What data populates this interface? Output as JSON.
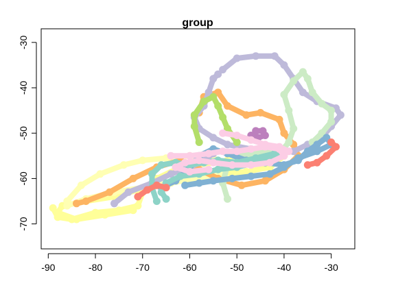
{
  "chart_data": {
    "type": "scatter",
    "title": "group",
    "xlabel": "",
    "ylabel": "",
    "xlim": [
      -91.5,
      -25
    ],
    "ylim": [
      -75.5,
      -27
    ],
    "x_ticks": [
      -90,
      -80,
      -70,
      -60,
      -50,
      -40,
      -30
    ],
    "y_ticks": [
      -30,
      -40,
      -50,
      -60,
      -70
    ],
    "grid": false,
    "legend": "none",
    "series": [
      {
        "color": "#FFFF99",
        "points": [
          [
            -89,
            -66.5
          ],
          [
            -88,
            -68.5
          ],
          [
            -85,
            -69
          ],
          [
            -80,
            -67.5
          ],
          [
            -75,
            -67
          ],
          [
            -71,
            -66
          ],
          [
            -70,
            -63
          ],
          [
            -67,
            -60
          ],
          [
            -63,
            -58
          ],
          [
            -58,
            -57
          ],
          [
            -52,
            -56
          ],
          [
            -46,
            -55
          ],
          [
            -42,
            -54
          ],
          [
            -40,
            -55
          ],
          [
            -43,
            -57.5
          ],
          [
            -48,
            -58.5
          ],
          [
            -54,
            -59
          ],
          [
            -60,
            -60
          ],
          [
            -66,
            -61.5
          ],
          [
            -71,
            -62.5
          ],
          [
            -76,
            -64
          ],
          [
            -82,
            -65
          ],
          [
            -87,
            -66
          ],
          [
            -88,
            -67.5
          ],
          [
            -84,
            -69
          ],
          [
            -78,
            -68
          ],
          [
            -72,
            -67
          ]
        ]
      },
      {
        "color": "#FFFFB3",
        "points": [
          [
            -86,
            -65
          ],
          [
            -83,
            -61.5
          ],
          [
            -79,
            -59
          ],
          [
            -74,
            -57
          ],
          [
            -70,
            -56
          ],
          [
            -65,
            -55.5
          ],
          [
            -60,
            -55
          ],
          [
            -55,
            -55.5
          ],
          [
            -52,
            -57
          ],
          [
            -54,
            -59
          ],
          [
            -59,
            -60
          ],
          [
            -64,
            -61
          ],
          [
            -70,
            -62
          ],
          [
            -76,
            -63
          ],
          [
            -82,
            -64.5
          ],
          [
            -86,
            -66
          ]
        ]
      },
      {
        "color": "#FDB462",
        "points": [
          [
            -58,
            -45.5
          ],
          [
            -57,
            -42
          ],
          [
            -54,
            -41
          ],
          [
            -52,
            -44
          ],
          [
            -48,
            -46
          ],
          [
            -45,
            -45.5
          ],
          [
            -41,
            -47
          ],
          [
            -40,
            -50
          ],
          [
            -38,
            -52.5
          ],
          [
            -37,
            -55
          ],
          [
            -40,
            -58
          ],
          [
            -44,
            -60.5
          ],
          [
            -49,
            -61.5
          ],
          [
            -54,
            -60
          ],
          [
            -58,
            -58
          ],
          [
            -62,
            -56
          ],
          [
            -67,
            -57.5
          ],
          [
            -72,
            -60
          ],
          [
            -77,
            -63
          ],
          [
            -82,
            -65
          ],
          [
            -84,
            -65.5
          ]
        ]
      },
      {
        "color": "#BEBADA",
        "points": [
          [
            -53,
            -36
          ],
          [
            -50,
            -33.5
          ],
          [
            -46,
            -33
          ],
          [
            -42,
            -33
          ],
          [
            -40,
            -35
          ],
          [
            -38,
            -38
          ],
          [
            -36,
            -41
          ],
          [
            -33,
            -43
          ],
          [
            -29,
            -44.5
          ],
          [
            -28,
            -46
          ],
          [
            -30,
            -48.5
          ],
          [
            -32,
            -51
          ],
          [
            -35,
            -52.5
          ],
          [
            -38,
            -54
          ],
          [
            -42,
            -54.5
          ],
          [
            -47,
            -53.5
          ],
          [
            -52,
            -52.5
          ],
          [
            -55,
            -51
          ],
          [
            -58,
            -49
          ],
          [
            -59,
            -46.5
          ],
          [
            -57,
            -44
          ],
          [
            -56,
            -41
          ],
          [
            -55,
            -38
          ],
          [
            -54,
            -37
          ]
        ]
      },
      {
        "color": "#BEBADA",
        "points": [
          [
            -76,
            -65.5
          ],
          [
            -73,
            -63
          ],
          [
            -68,
            -61
          ],
          [
            -64,
            -59
          ],
          [
            -60,
            -57.5
          ],
          [
            -57,
            -56
          ],
          [
            -55,
            -54.5
          ]
        ]
      },
      {
        "color": "#CCEBC5",
        "points": [
          [
            -52,
            -64.5
          ],
          [
            -53,
            -61
          ],
          [
            -52,
            -57
          ],
          [
            -49,
            -55
          ],
          [
            -45,
            -54
          ],
          [
            -41,
            -54.5
          ],
          [
            -39,
            -52
          ],
          [
            -38,
            -49
          ],
          [
            -39,
            -45
          ],
          [
            -40,
            -41.5
          ],
          [
            -38,
            -38.5
          ],
          [
            -36,
            -36.5
          ],
          [
            -35,
            -38
          ],
          [
            -34,
            -41
          ],
          [
            -32,
            -43.5
          ],
          [
            -30,
            -45
          ],
          [
            -30,
            -47.5
          ],
          [
            -32,
            -50
          ],
          [
            -34,
            -52
          ]
        ]
      },
      {
        "color": "#B3DE69",
        "points": [
          [
            -58,
            -52
          ],
          [
            -59,
            -48.5
          ],
          [
            -59,
            -46
          ],
          [
            -57,
            -43
          ],
          [
            -55,
            -42
          ],
          [
            -54,
            -44
          ],
          [
            -53,
            -46.5
          ],
          [
            -52,
            -49
          ],
          [
            -50,
            -52
          ]
        ]
      },
      {
        "color": "#80B1D3",
        "points": [
          [
            -66,
            -62
          ],
          [
            -63,
            -60.5
          ],
          [
            -60,
            -57.5
          ],
          [
            -58,
            -55
          ],
          [
            -55,
            -53.5
          ],
          [
            -52,
            -54.5
          ],
          [
            -48,
            -56
          ],
          [
            -44,
            -56.5
          ],
          [
            -40,
            -57
          ],
          [
            -37,
            -56
          ],
          [
            -35,
            -54
          ],
          [
            -33,
            -52.5
          ],
          [
            -31,
            -51
          ],
          [
            -30,
            -52.5
          ],
          [
            -33,
            -54
          ],
          [
            -37,
            -55.5
          ],
          [
            -40,
            -57.5
          ],
          [
            -43,
            -59
          ],
          [
            -47,
            -59.5
          ],
          [
            -51,
            -60
          ],
          [
            -55,
            -60.5
          ],
          [
            -58,
            -61
          ],
          [
            -61,
            -61.5
          ]
        ]
      },
      {
        "color": "#8DD3C7",
        "points": [
          [
            -67,
            -65
          ],
          [
            -68,
            -62
          ],
          [
            -68,
            -59
          ],
          [
            -66,
            -57
          ],
          [
            -63,
            -56.5
          ],
          [
            -60,
            -57
          ],
          [
            -57,
            -56.5
          ],
          [
            -54,
            -56
          ],
          [
            -50,
            -56.5
          ],
          [
            -46,
            -55.5
          ],
          [
            -42,
            -54.5
          ],
          [
            -40,
            -54
          ],
          [
            -42,
            -55.5
          ],
          [
            -46,
            -56.5
          ],
          [
            -50,
            -57.5
          ],
          [
            -54,
            -58
          ],
          [
            -58,
            -59
          ],
          [
            -62,
            -59.5
          ],
          [
            -65,
            -61
          ],
          [
            -66,
            -63
          ],
          [
            -65,
            -64.5
          ]
        ]
      },
      {
        "color": "#FB8072",
        "points": [
          [
            -35,
            -57
          ],
          [
            -33,
            -56.5
          ],
          [
            -31,
            -55
          ],
          [
            -29,
            -53
          ],
          [
            -30,
            -52
          ]
        ]
      },
      {
        "color": "#FB8072",
        "points": [
          [
            -71,
            -64
          ],
          [
            -69,
            -62.5
          ],
          [
            -67,
            -61.5
          ],
          [
            -65,
            -62
          ]
        ]
      },
      {
        "color": "#BC80BD",
        "points": [
          [
            -46,
            -49.5
          ],
          [
            -44.5,
            -49.5
          ],
          [
            -44,
            -50.5
          ],
          [
            -45.5,
            -51
          ],
          [
            -47,
            -50.5
          ]
        ]
      },
      {
        "color": "#FCCDE5",
        "points": [
          [
            -64,
            -55
          ],
          [
            -60,
            -55
          ],
          [
            -56,
            -54.5
          ],
          [
            -53,
            -54
          ],
          [
            -50,
            -54
          ],
          [
            -47,
            -53.5
          ],
          [
            -44,
            -53
          ],
          [
            -41,
            -53.5
          ],
          [
            -40,
            -55
          ],
          [
            -43,
            -56.5
          ],
          [
            -47,
            -57
          ],
          [
            -51,
            -57
          ],
          [
            -55,
            -56.5
          ],
          [
            -58,
            -56
          ],
          [
            -61,
            -56.5
          ],
          [
            -63,
            -57.5
          ],
          [
            -60,
            -58.5
          ],
          [
            -56,
            -58
          ]
        ]
      },
      {
        "color": "#FCCDE5",
        "points": [
          [
            -53,
            -50
          ],
          [
            -50,
            -50.5
          ],
          [
            -47,
            -51.5
          ],
          [
            -44,
            -52.5
          ],
          [
            -41,
            -53
          ],
          [
            -39,
            -54
          ]
        ]
      }
    ]
  }
}
